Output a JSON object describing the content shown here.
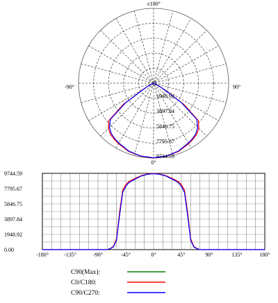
{
  "chart_data": [
    {
      "type": "polar",
      "angle_labels": {
        "top": "±180°",
        "left": "-90°",
        "right": "90°",
        "bottom": "0°"
      },
      "radial_labels": [
        "1948.92",
        "3897.84",
        "5846.75",
        "7795.67",
        "9744.59"
      ],
      "rmax": 9744.59,
      "series": [
        {
          "name": "C0/C180:",
          "color": "#ff0000",
          "points": [
            [
              -70,
              150
            ],
            [
              -65,
              420
            ],
            [
              -60,
              1400
            ],
            [
              -55,
              4800
            ],
            [
              -50,
              7600
            ],
            [
              -45,
              8300
            ],
            [
              -40,
              8700
            ],
            [
              -35,
              8900
            ],
            [
              -30,
              9100
            ],
            [
              -20,
              9450
            ],
            [
              -10,
              9650
            ],
            [
              0,
              9744.59
            ],
            [
              10,
              9650
            ],
            [
              20,
              9450
            ],
            [
              30,
              9100
            ],
            [
              35,
              8900
            ],
            [
              40,
              8700
            ],
            [
              45,
              8300
            ],
            [
              50,
              7600
            ],
            [
              55,
              4800
            ],
            [
              60,
              1400
            ],
            [
              65,
              420
            ],
            [
              70,
              150
            ]
          ]
        },
        {
          "name": "C90/C270:",
          "color": "#0000ff",
          "points": [
            [
              -70,
              120
            ],
            [
              -65,
              350
            ],
            [
              -60,
              1200
            ],
            [
              -55,
              4400
            ],
            [
              -50,
              7300
            ],
            [
              -45,
              8100
            ],
            [
              -40,
              8550
            ],
            [
              -35,
              8800
            ],
            [
              -30,
              9000
            ],
            [
              -20,
              9400
            ],
            [
              -10,
              9620
            ],
            [
              0,
              9700
            ],
            [
              10,
              9620
            ],
            [
              20,
              9400
            ],
            [
              30,
              9000
            ],
            [
              35,
              8800
            ],
            [
              40,
              8550
            ],
            [
              45,
              8100
            ],
            [
              50,
              7300
            ],
            [
              55,
              4400
            ],
            [
              60,
              1200
            ],
            [
              65,
              350
            ],
            [
              70,
              120
            ]
          ]
        }
      ]
    },
    {
      "type": "line",
      "x_ticks": [
        "-180°",
        "-135°",
        "-90°",
        "-45°",
        "0°",
        "45°",
        "90°",
        "135°",
        "180°"
      ],
      "y_ticks": [
        "0.00",
        "1948.92",
        "3897.84",
        "5846.75",
        "7795.67",
        "9744.59"
      ],
      "xlim": [
        -180,
        180
      ],
      "ylim": [
        0,
        9744.59
      ],
      "grid": true
    }
  ],
  "legend": [
    {
      "label": "C90(Max):",
      "color": "#008000"
    },
    {
      "label": "C0/C180:",
      "color": "#ff0000"
    },
    {
      "label": "C90/C270:",
      "color": "#0000ff"
    }
  ]
}
